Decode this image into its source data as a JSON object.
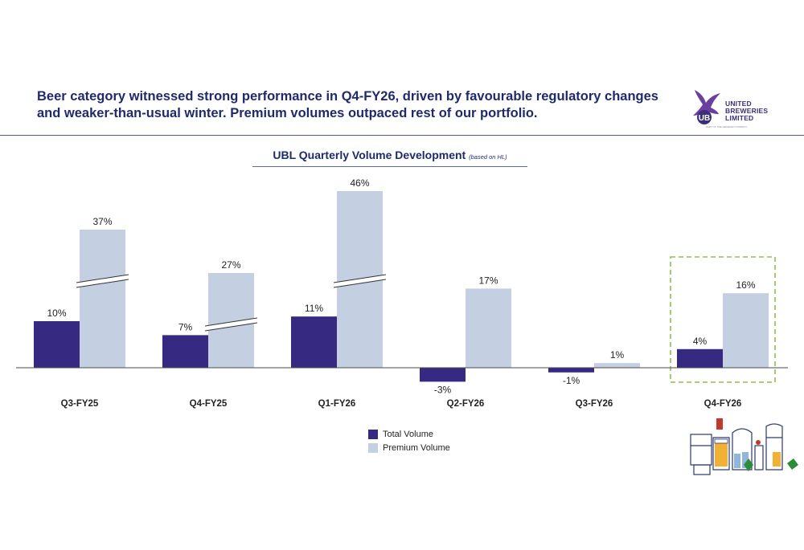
{
  "headline": "Beer category witnessed strong performance in Q4-FY26, driven by favourable regulatory changes and weaker-than-usual winter. Premium volumes outpaced rest of our portfolio.",
  "logo": {
    "line1": "UNITED",
    "line2": "BREWERIES",
    "line3": "LIMITED",
    "tagline": "PART OF THE HEINEKEN COMPANY"
  },
  "colors": {
    "total": "#352982",
    "premium": "#c5cfe2",
    "highlight": "#8bc34a",
    "title": "#1f2a6b"
  },
  "chart_data": {
    "type": "bar",
    "title": "UBL Quarterly Volume Development",
    "subtitle": "(based on HL)",
    "categories": [
      "Q3-FY25",
      "Q4-FY25",
      "Q1-FY26",
      "Q2-FY26",
      "Q3-FY26",
      "Q4-FY26"
    ],
    "series": [
      {
        "name": "Total Volume",
        "values": [
          10,
          7,
          11,
          -3,
          -1,
          4
        ],
        "labels": [
          "10%",
          "7%",
          "11%",
          "-3%",
          "-1%",
          "4%"
        ]
      },
      {
        "name": "Premium Volume",
        "values": [
          37,
          27,
          46,
          17,
          1,
          16
        ],
        "labels": [
          "37%",
          "27%",
          "46%",
          "17%",
          "1%",
          "16%"
        ]
      }
    ],
    "axis_break_on": [
      "Q3-FY25",
      "Q4-FY25",
      "Q1-FY26"
    ],
    "highlighted_category": "Q4-FY26",
    "legend_position": "bottom-center"
  }
}
